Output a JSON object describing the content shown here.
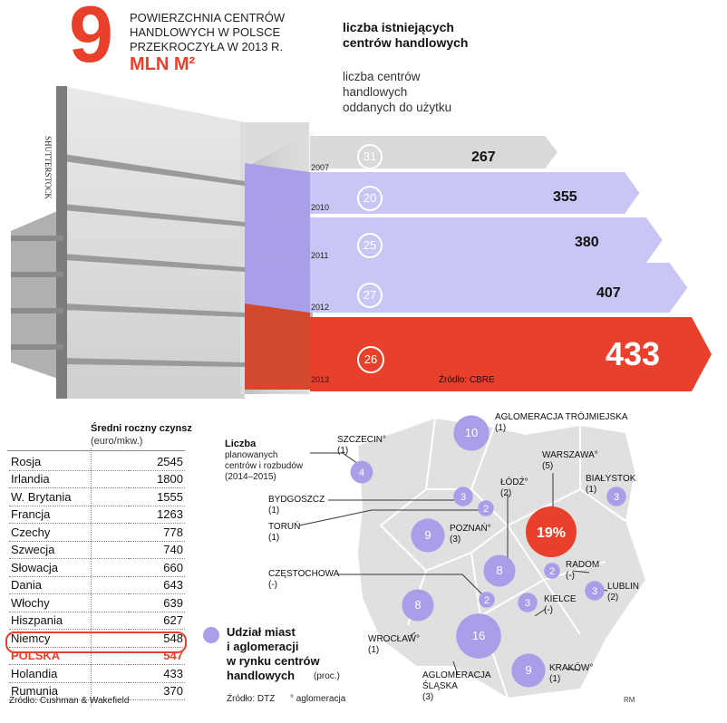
{
  "headline": {
    "number": "9",
    "text": [
      "POWIERZCHNIA CENTRÓW",
      "HANDLOWYCH W POLSCE",
      "PRZEKROCZYŁA W 2013 R."
    ],
    "unit": "MLN M²"
  },
  "legend": {
    "existing": [
      "liczba istniejących",
      "centrów handlowych"
    ],
    "opened": [
      "liczba centrów",
      "handlowych",
      "oddanych do użytku"
    ]
  },
  "photo_credit": "SHUTTERSTOCK",
  "bar_source": "Źródło: CBRE",
  "colors": {
    "accent": "#e8402a",
    "purple": "#a99ee8",
    "lavender": "#c9c6f5",
    "gray": "#d9d9d9"
  },
  "chart_data": [
    {
      "type": "bar",
      "categories": [
        "2007",
        "2010",
        "2011",
        "2012",
        "2013"
      ],
      "series": [
        {
          "name": "liczba istniejących centrów handlowych",
          "values": [
            267,
            355,
            380,
            407,
            433
          ]
        },
        {
          "name": "liczba centrów handlowych oddanych do użytku",
          "values": [
            31,
            20,
            25,
            27,
            26
          ]
        }
      ],
      "source": "Źródło: CBRE"
    },
    {
      "type": "table",
      "title": "Średni roczny czynsz",
      "subtitle": "(euro/mkw.)",
      "rows": [
        {
          "country": "Rosja",
          "value": "2545"
        },
        {
          "country": "Irlandia",
          "value": "1800"
        },
        {
          "country": "W. Brytania",
          "value": "1555"
        },
        {
          "country": "Francja",
          "value": "1263"
        },
        {
          "country": "Czechy",
          "value": "778"
        },
        {
          "country": "Szwecja",
          "value": "740"
        },
        {
          "country": "Słowacja",
          "value": "660"
        },
        {
          "country": "Dania",
          "value": "643"
        },
        {
          "country": "Włochy",
          "value": "639"
        },
        {
          "country": "Hiszpania",
          "value": "627"
        },
        {
          "country": "Niemcy",
          "value": "548"
        },
        {
          "country": "POLSKA",
          "value": "547",
          "highlight": true
        },
        {
          "country": "Holandia",
          "value": "433"
        },
        {
          "country": "Rumunia",
          "value": "370"
        }
      ],
      "source": "Źródło: Cushman & Wakefield"
    },
    {
      "type": "scatter",
      "title": "Udział miast i aglomeracji w rynku centrów handlowych",
      "unit": "(proc.)",
      "cities": [
        {
          "name": "AGLOMERACJA TRÓJMIEJSKA",
          "share": "10",
          "planned": "(1)"
        },
        {
          "name": "SZCZECIN°",
          "share": "4",
          "planned": "(1)"
        },
        {
          "name": "BYDGOSZCZ",
          "share": "3",
          "planned": "(1)"
        },
        {
          "name": "TORUŃ",
          "share": "2",
          "planned": "(1)"
        },
        {
          "name": "POZNAŃ°",
          "share": "9",
          "planned": "(3)"
        },
        {
          "name": "WARSZAWA°",
          "share": "19%",
          "planned": "(5)"
        },
        {
          "name": "BIAŁYSTOK",
          "share": "3",
          "planned": "(1)"
        },
        {
          "name": "ŁÓDŹ°",
          "share": "8",
          "planned": "(2)"
        },
        {
          "name": "RADOM",
          "share": "2",
          "planned": "(-)"
        },
        {
          "name": "LUBLIN",
          "share": "3",
          "planned": "(2)"
        },
        {
          "name": "CZĘSTOCHOWA",
          "share": "2",
          "planned": "(-)"
        },
        {
          "name": "KIELCE",
          "share": "3",
          "planned": "(-)"
        },
        {
          "name": "WROCŁAW°",
          "share": "8",
          "planned": "(1)"
        },
        {
          "name": "AGLOMERACJA ŚLĄSKA",
          "share": "16",
          "planned": "(3)"
        },
        {
          "name": "KRAKÓW°",
          "share": "9",
          "planned": "(1)"
        }
      ]
    }
  ],
  "map": {
    "planned_label": "Liczba",
    "planned_desc": [
      "planowanych",
      "centrów i rozbudów",
      "(2014–2015)"
    ],
    "share_legend": [
      "Udział miast",
      "i aglomeracji",
      "w rynku centrów",
      "handlowych"
    ],
    "share_unit": "(proc.)",
    "source": "Źródło: DTZ",
    "note": "° aglomeracja",
    "credit": "RM"
  }
}
